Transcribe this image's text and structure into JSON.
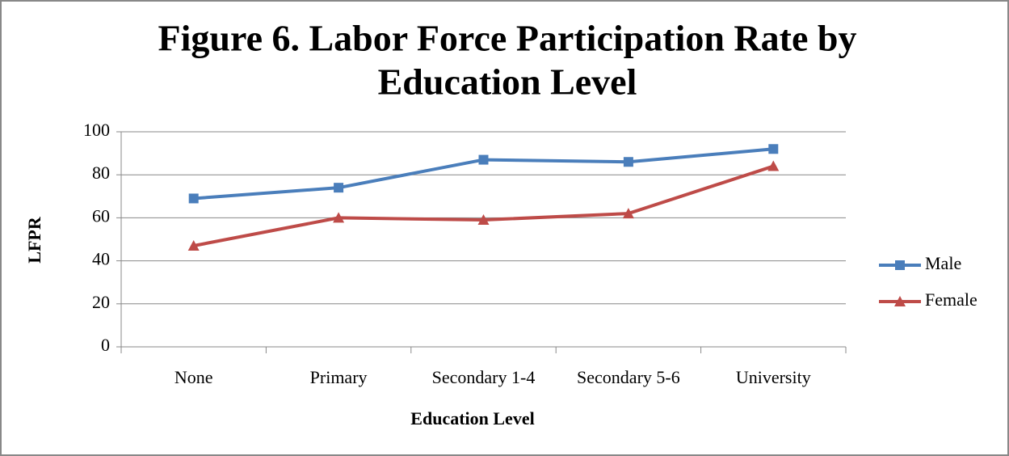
{
  "chart_data": {
    "type": "line",
    "title": [
      "Figure 6. Labor Force Participation Rate by",
      "Education Level"
    ],
    "xlabel": "Education Level",
    "ylabel": "LFPR",
    "categories": [
      "None",
      "Primary",
      "Secondary 1-4",
      "Secondary 5-6",
      "University"
    ],
    "series": [
      {
        "name": "Male",
        "color": "#4a7ebb",
        "marker": "square",
        "values": [
          69,
          74,
          87,
          86,
          92
        ]
      },
      {
        "name": "Female",
        "color": "#be4b48",
        "marker": "triangle",
        "values": [
          47,
          60,
          59,
          62,
          84
        ]
      }
    ],
    "ylim": [
      0,
      100
    ],
    "yticks": [
      0,
      20,
      40,
      60,
      80,
      100
    ],
    "grid": true,
    "legend": "right"
  }
}
